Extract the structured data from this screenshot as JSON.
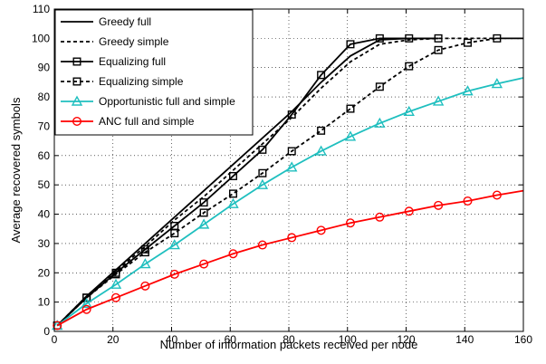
{
  "chart_data": {
    "type": "line",
    "xlabel": "Number of information packets received per node",
    "ylabel": "Average recovered symbols",
    "xlim": [
      0,
      160
    ],
    "ylim": [
      0,
      110
    ],
    "x_ticks": [
      0,
      20,
      40,
      60,
      80,
      100,
      120,
      140,
      160
    ],
    "y_ticks": [
      0,
      10,
      20,
      30,
      40,
      50,
      60,
      70,
      80,
      90,
      100,
      110
    ],
    "grid": true,
    "legend_position": "top-left",
    "series": [
      {
        "name": "Greedy full",
        "color": "#000000",
        "dash": "solid",
        "marker": "none",
        "x": [
          1,
          11,
          21,
          31,
          41,
          51,
          61,
          71,
          81,
          91,
          101,
          111,
          121,
          131
        ],
        "y": [
          2,
          12,
          21,
          30,
          39,
          48,
          57,
          66,
          75,
          85,
          94,
          99.5,
          100,
          100
        ]
      },
      {
        "name": "Greedy simple",
        "color": "#000000",
        "dash": "dashed",
        "marker": "none",
        "x": [
          1,
          11,
          21,
          31,
          41,
          51,
          61,
          71,
          81,
          91,
          101,
          111,
          121,
          131,
          141,
          151,
          160
        ],
        "y": [
          2,
          12,
          20.5,
          29,
          38,
          46,
          55,
          64,
          73,
          83,
          92,
          98,
          99.5,
          100,
          100,
          100,
          100
        ]
      },
      {
        "name": "Equalizing full",
        "color": "#000000",
        "dash": "solid",
        "marker": "square",
        "x": [
          1,
          11,
          21,
          31,
          41,
          51,
          61,
          71,
          81,
          91,
          101,
          111,
          121,
          131
        ],
        "y": [
          2,
          11.5,
          20,
          28,
          36,
          44,
          53,
          62,
          74,
          87.5,
          98,
          100,
          100,
          100
        ]
      },
      {
        "name": "Equalizing simple",
        "color": "#000000",
        "dash": "dashed",
        "marker": "square",
        "x": [
          1,
          11,
          21,
          31,
          41,
          51,
          61,
          71,
          81,
          91,
          101,
          111,
          121,
          131,
          141,
          151,
          160
        ],
        "y": [
          2,
          11.5,
          19.5,
          27,
          33.5,
          40.5,
          47,
          54,
          61.5,
          68.5,
          76,
          83.5,
          90.5,
          96,
          98.5,
          100,
          100
        ]
      },
      {
        "name": "Opportunistic full and simple",
        "color": "#1fbfbf",
        "dash": "solid",
        "marker": "triangle",
        "x": [
          1,
          11,
          21,
          31,
          41,
          51,
          61,
          71,
          81,
          91,
          101,
          111,
          121,
          131,
          141,
          151,
          160
        ],
        "y": [
          2,
          9.5,
          16,
          23,
          29.5,
          36.5,
          43.5,
          50,
          56,
          61.5,
          66.5,
          71,
          75,
          78.5,
          82,
          84.5,
          86.5
        ]
      },
      {
        "name": "ANC full and simple",
        "color": "#ff0000",
        "dash": "solid",
        "marker": "circle",
        "x": [
          1,
          11,
          21,
          31,
          41,
          51,
          61,
          71,
          81,
          91,
          101,
          111,
          121,
          131,
          141,
          151,
          160
        ],
        "y": [
          2,
          7.5,
          11.5,
          15.5,
          19.5,
          23,
          26.5,
          29.5,
          32,
          34.5,
          37,
          39,
          41,
          43,
          44.5,
          46.5,
          48
        ]
      }
    ]
  }
}
